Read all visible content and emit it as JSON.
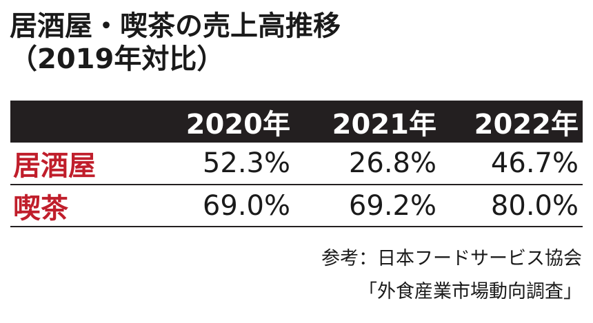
{
  "title": {
    "line1": "居酒屋・喫茶の売上高推移",
    "line2": "（2019年対比）"
  },
  "colors": {
    "header_bg": "#231f20",
    "header_text": "#ffffff",
    "row_label": "#c01e2b",
    "text": "#1a1a1a"
  },
  "chart_data": {
    "type": "table",
    "title": "居酒屋・喫茶の売上高推移（2019年対比）",
    "columns": [
      "2020年",
      "2021年",
      "2022年"
    ],
    "rows": [
      {
        "label": "居酒屋",
        "cells": [
          "52.3%",
          "26.8%",
          "46.7%"
        ],
        "values": [
          52.3,
          26.8,
          46.7
        ]
      },
      {
        "label": "喫茶",
        "cells": [
          "69.0%",
          "69.2%",
          "80.0%"
        ],
        "values": [
          69.0,
          69.2,
          80.0
        ]
      }
    ],
    "unit": "%"
  },
  "source": {
    "line1": "参考：日本フードサービス協会",
    "line2": "「外食産業市場動向調査」"
  }
}
